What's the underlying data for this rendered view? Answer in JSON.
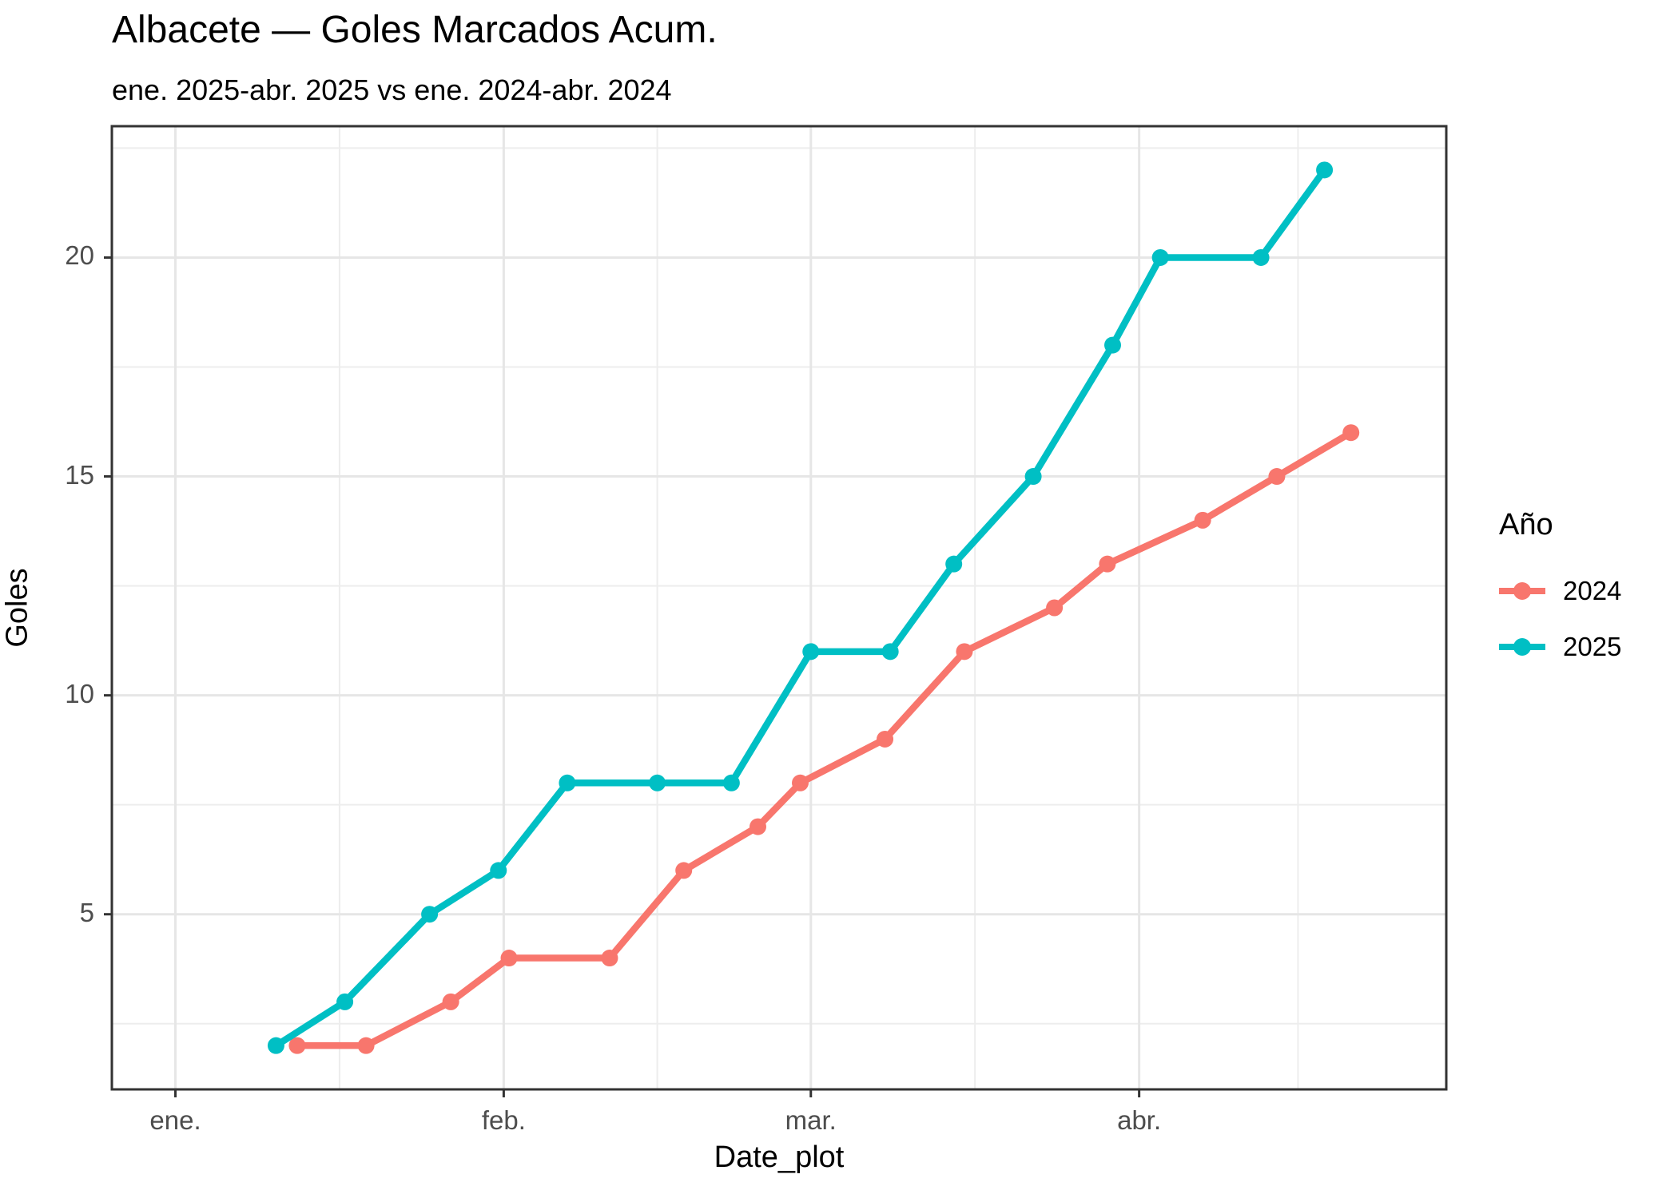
{
  "header": {
    "title": "Albacete — Goles Marcados Acum.",
    "subtitle": "ene. 2025-abr. 2025 vs ene. 2024-abr. 2024"
  },
  "legend": {
    "title": "Año",
    "entries": [
      {
        "label": "2024",
        "color": "#F8766D"
      },
      {
        "label": "2025",
        "color": "#00BFC4"
      }
    ]
  },
  "chart_data": {
    "type": "line",
    "title": "Albacete — Goles Marcados Acum.",
    "subtitle": "ene. 2025-abr. 2025 vs ene. 2024-abr. 2024",
    "xlabel": "Date_plot",
    "ylabel": "Goles",
    "x_unit": "days-from-jan-1",
    "xlim": [
      -6,
      120
    ],
    "ylim": [
      1,
      23
    ],
    "x_ticks": [
      {
        "value": 0,
        "label": "ene."
      },
      {
        "value": 31,
        "label": "feb."
      },
      {
        "value": 60,
        "label": "mar."
      },
      {
        "value": 91,
        "label": "abr."
      }
    ],
    "x_minor": [
      15.5,
      45.5,
      75.5,
      106
    ],
    "y_ticks": [
      {
        "value": 5,
        "label": "5"
      },
      {
        "value": 10,
        "label": "10"
      },
      {
        "value": 15,
        "label": "15"
      },
      {
        "value": 20,
        "label": "20"
      }
    ],
    "y_minor": [
      2.5,
      7.5,
      12.5,
      17.5,
      22.5
    ],
    "grid": true,
    "legend_position": "right",
    "legend_title": "Año",
    "series": [
      {
        "name": "2024",
        "color": "#F8766D",
        "points": [
          [
            11.5,
            2
          ],
          [
            18,
            2
          ],
          [
            26,
            3
          ],
          [
            31.5,
            4
          ],
          [
            41,
            4
          ],
          [
            48,
            6
          ],
          [
            55,
            7
          ],
          [
            59,
            8
          ],
          [
            67,
            9
          ],
          [
            74.5,
            11
          ],
          [
            83,
            12
          ],
          [
            88,
            13
          ],
          [
            97,
            14
          ],
          [
            104,
            15
          ],
          [
            111,
            16
          ]
        ]
      },
      {
        "name": "2025",
        "color": "#00BFC4",
        "points": [
          [
            9.5,
            2
          ],
          [
            16,
            3
          ],
          [
            24,
            5
          ],
          [
            30.5,
            6
          ],
          [
            37,
            8
          ],
          [
            45.5,
            8
          ],
          [
            52.5,
            8
          ],
          [
            60,
            11
          ],
          [
            67.5,
            11
          ],
          [
            73.5,
            13
          ],
          [
            81,
            15
          ],
          [
            88.5,
            18
          ],
          [
            93,
            20
          ],
          [
            102.5,
            20
          ],
          [
            108.5,
            22
          ]
        ]
      }
    ]
  }
}
